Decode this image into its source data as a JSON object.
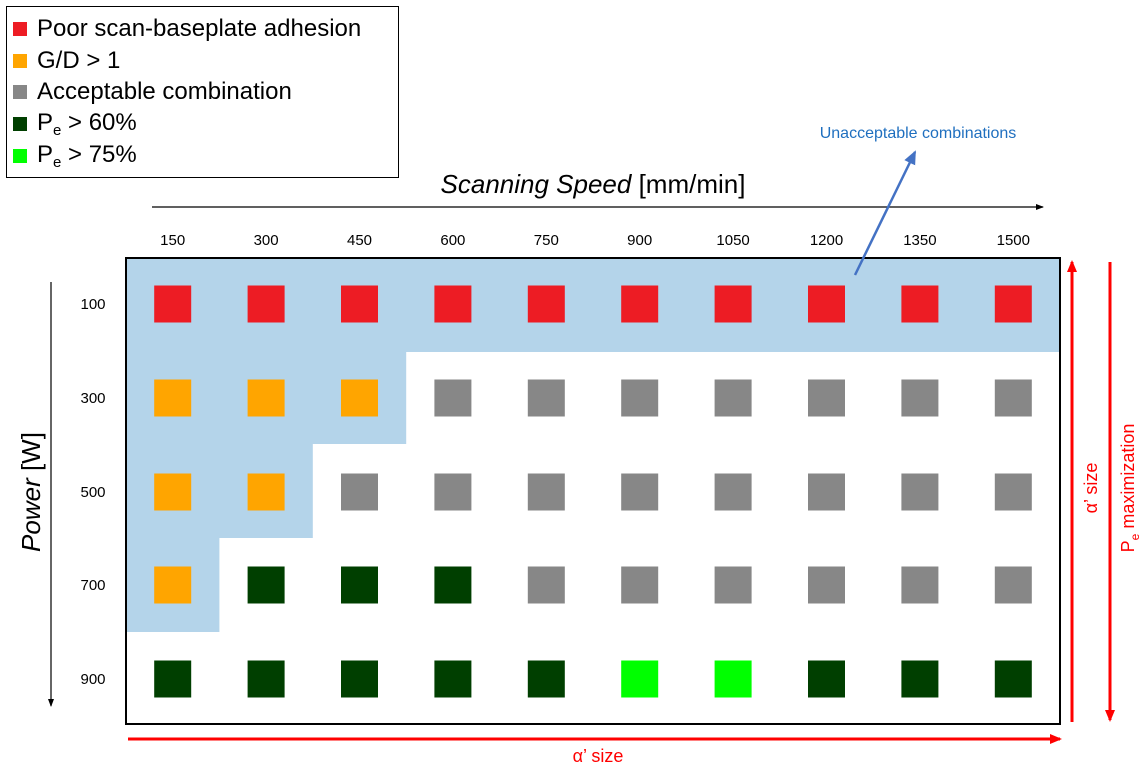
{
  "chart_data": {
    "type": "heatmap",
    "xlabel": {
      "italic": "Scanning Speed",
      "unit": " [mm/min]"
    },
    "ylabel": {
      "italic": "Power",
      "unit": " [W]"
    },
    "x": [
      "150",
      "300",
      "450",
      "600",
      "750",
      "900",
      "1050",
      "1200",
      "1350",
      "1500"
    ],
    "y": [
      "100",
      "300",
      "500",
      "700",
      "900"
    ],
    "cells": [
      [
        "poor",
        "poor",
        "poor",
        "poor",
        "poor",
        "poor",
        "poor",
        "poor",
        "poor",
        "poor"
      ],
      [
        "gd",
        "gd",
        "gd",
        "ok",
        "ok",
        "ok",
        "ok",
        "ok",
        "ok",
        "ok"
      ],
      [
        "gd",
        "gd",
        "ok",
        "ok",
        "ok",
        "ok",
        "ok",
        "ok",
        "ok",
        "ok"
      ],
      [
        "gd",
        "pe60",
        "pe60",
        "pe60",
        "ok",
        "ok",
        "ok",
        "ok",
        "ok",
        "ok"
      ],
      [
        "pe60",
        "pe60",
        "pe60",
        "pe60",
        "pe60",
        "pe75",
        "pe75",
        "pe60",
        "pe60",
        "pe60"
      ]
    ],
    "legend": [
      {
        "key": "poor",
        "text": "Poor scan-baseplate adhesion",
        "color": "#ed1c24"
      },
      {
        "key": "gd",
        "text": "G/D > 1",
        "color": "#ffa500"
      },
      {
        "key": "ok",
        "text": "Acceptable combination",
        "color": "#878787"
      },
      {
        "key": "pe60",
        "text": "P",
        "sub": "e",
        "rest": " > 60%",
        "color": "#003f00"
      },
      {
        "key": "pe75",
        "text": "P",
        "sub": "e",
        "rest": " > 75%",
        "color": "#00ff00"
      }
    ],
    "region_color": "#b4d4ea",
    "annotations": {
      "unacceptable": "Unacceptable combinations",
      "alpha_bottom": "α’ size",
      "alpha_right": "α’ size",
      "pe_right": {
        "text": "P",
        "sub": "e",
        "rest": " maximization"
      }
    },
    "annotation_colors": {
      "unacceptable": "#1f6fbf",
      "arrow": "#4472c4",
      "red": "#ff0000"
    }
  }
}
